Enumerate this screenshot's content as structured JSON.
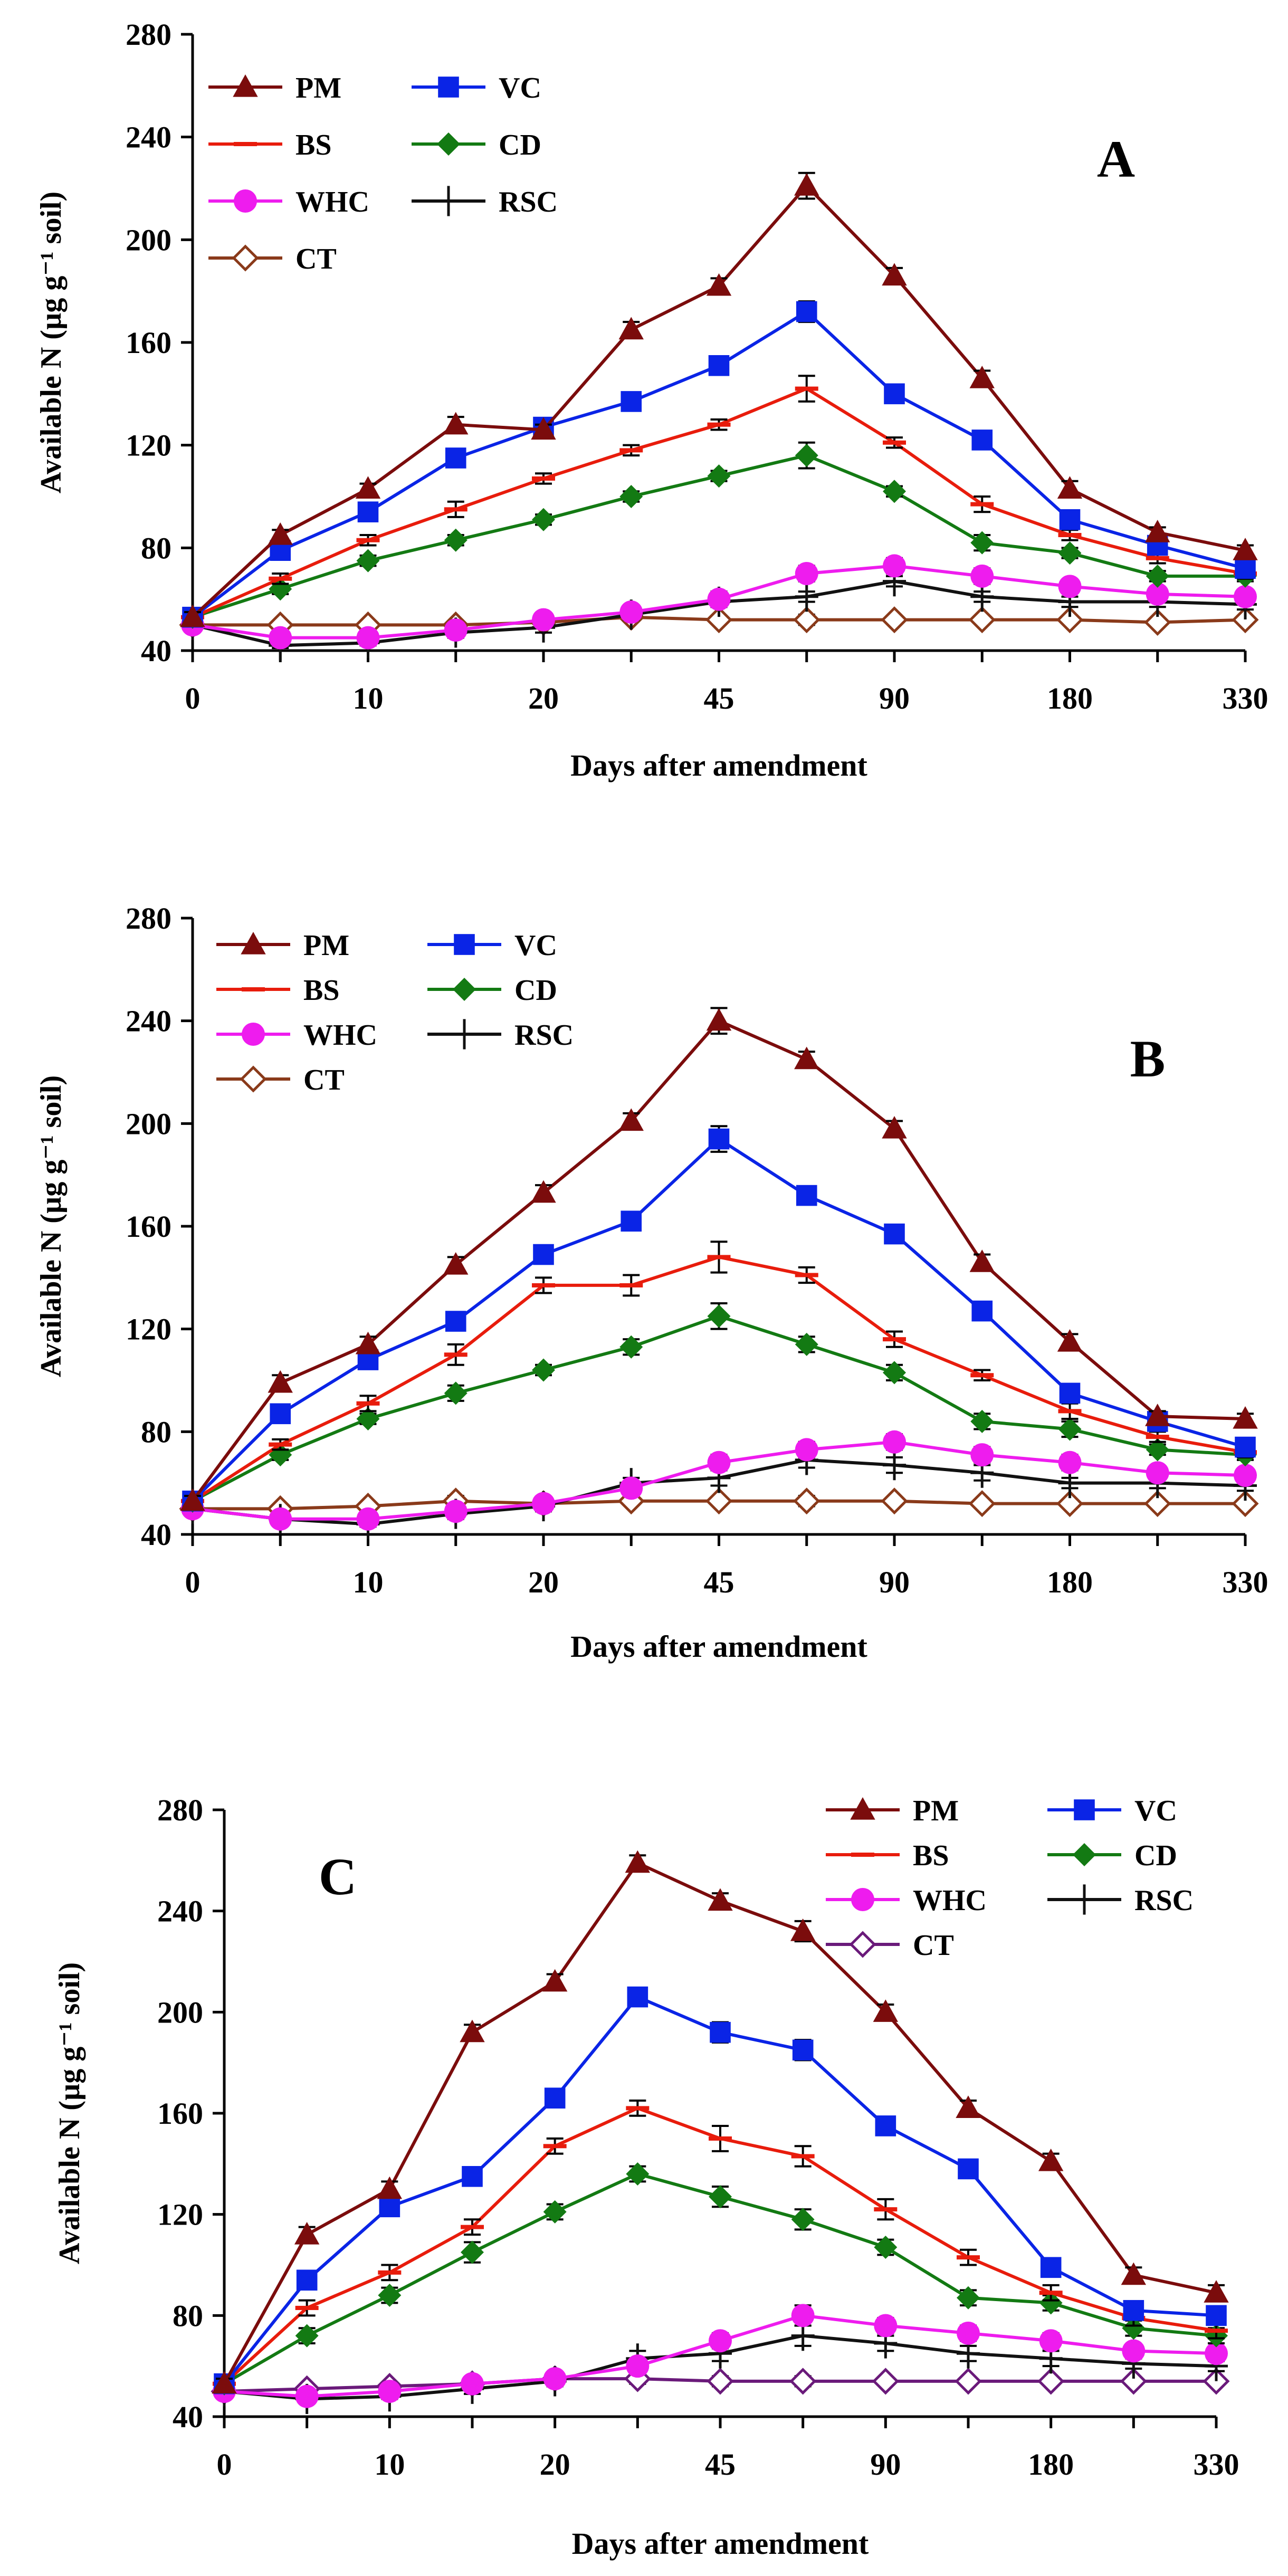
{
  "colors": {
    "PM": "#7b0c0c",
    "VC": "#0a24e6",
    "BS": "#e81c0c",
    "CD": "#137a13",
    "WHC": "#ee1cee",
    "RSC": "#111111",
    "CT_A": "#8a3a1a",
    "CT_C": "#6a1a7a"
  },
  "chart_data": [
    {
      "type": "line",
      "panel_label": "A",
      "title": "",
      "xlabel": "Days after amendment",
      "ylabel": "Available N (µg g⁻¹ soil)",
      "categories": [
        "0",
        "",
        "10",
        "",
        "20",
        "",
        "45",
        "",
        "90",
        "",
        "180",
        "",
        "330"
      ],
      "ylim": [
        40,
        280
      ],
      "yticks": [
        40,
        80,
        120,
        160,
        200,
        240,
        280
      ],
      "legend_placement": "top-left",
      "series": [
        {
          "name": "PM",
          "marker": "triangle",
          "values": [
            53,
            85,
            103,
            128,
            126,
            165,
            182,
            221,
            186,
            146,
            103,
            86,
            79
          ],
          "errors": [
            2,
            2,
            2,
            3,
            2,
            3,
            3,
            5,
            3,
            3,
            3,
            2,
            2
          ]
        },
        {
          "name": "VC",
          "marker": "square",
          "values": [
            53,
            79,
            94,
            115,
            127,
            137,
            151,
            172,
            140,
            122,
            91,
            81,
            72
          ],
          "errors": [
            2,
            2,
            3,
            3,
            3,
            2,
            3,
            4,
            3,
            3,
            3,
            2,
            2
          ]
        },
        {
          "name": "BS",
          "marker": "dash",
          "values": [
            53,
            68,
            83,
            95,
            107,
            118,
            128,
            142,
            121,
            97,
            85,
            76,
            70
          ],
          "errors": [
            2,
            2,
            2,
            3,
            2,
            2,
            2,
            5,
            2,
            3,
            2,
            2,
            2
          ]
        },
        {
          "name": "CD",
          "marker": "diamond",
          "values": [
            53,
            64,
            75,
            83,
            91,
            100,
            108,
            116,
            102,
            82,
            78,
            69,
            69
          ],
          "errors": [
            2,
            2,
            2,
            2,
            2,
            2,
            2,
            5,
            2,
            3,
            2,
            2,
            2
          ]
        },
        {
          "name": "WHC",
          "marker": "circle",
          "values": [
            50,
            45,
            45,
            48,
            52,
            55,
            60,
            70,
            73,
            69,
            65,
            62,
            61
          ],
          "errors": [
            1,
            1,
            1,
            2,
            2,
            2,
            3,
            3,
            3,
            3,
            2,
            2,
            2
          ]
        },
        {
          "name": "RSC",
          "marker": "plus",
          "values": [
            50,
            42,
            43,
            47,
            49,
            54,
            59,
            61,
            67,
            61,
            59,
            59,
            58
          ],
          "errors": [
            1,
            1,
            1,
            2,
            2,
            2,
            2,
            2,
            2,
            2,
            2,
            2,
            2
          ]
        },
        {
          "name": "CT",
          "marker": "open-diamond",
          "values": [
            50,
            50,
            50,
            50,
            51,
            53,
            52,
            52,
            52,
            52,
            52,
            51,
            52
          ],
          "errors": [
            1,
            1,
            1,
            1,
            1,
            1,
            1,
            2,
            1,
            1,
            1,
            1,
            1
          ]
        }
      ]
    },
    {
      "type": "line",
      "panel_label": "B",
      "title": "",
      "xlabel": "Days after amendment",
      "ylabel": "Available N (µg g⁻¹ soil)",
      "categories": [
        "0",
        "",
        "10",
        "",
        "20",
        "",
        "45",
        "",
        "90",
        "",
        "180",
        "",
        "330"
      ],
      "ylim": [
        40,
        280
      ],
      "yticks": [
        40,
        80,
        120,
        160,
        200,
        240,
        280
      ],
      "legend_placement": "top-left",
      "series": [
        {
          "name": "PM",
          "marker": "triangle",
          "values": [
            53,
            99,
            114,
            145,
            173,
            201,
            240,
            225,
            198,
            146,
            115,
            86,
            85
          ],
          "errors": [
            2,
            3,
            3,
            3,
            3,
            3,
            5,
            3,
            3,
            3,
            3,
            2,
            2
          ]
        },
        {
          "name": "VC",
          "marker": "square",
          "values": [
            53,
            87,
            108,
            123,
            149,
            162,
            194,
            172,
            157,
            127,
            95,
            84,
            74
          ],
          "errors": [
            2,
            3,
            3,
            3,
            3,
            3,
            5,
            3,
            3,
            3,
            3,
            2,
            2
          ]
        },
        {
          "name": "BS",
          "marker": "dash",
          "values": [
            53,
            75,
            91,
            110,
            137,
            137,
            148,
            141,
            116,
            102,
            88,
            78,
            72
          ],
          "errors": [
            2,
            2,
            3,
            4,
            3,
            4,
            6,
            3,
            3,
            2,
            3,
            2,
            2
          ]
        },
        {
          "name": "CD",
          "marker": "diamond",
          "values": [
            53,
            71,
            85,
            95,
            104,
            113,
            125,
            114,
            103,
            84,
            81,
            73,
            71
          ],
          "errors": [
            2,
            2,
            2,
            3,
            2,
            3,
            5,
            3,
            3,
            3,
            3,
            2,
            2
          ]
        },
        {
          "name": "WHC",
          "marker": "circle",
          "values": [
            50,
            46,
            46,
            49,
            52,
            58,
            68,
            73,
            76,
            71,
            68,
            64,
            63
          ],
          "errors": [
            1,
            1,
            1,
            2,
            2,
            2,
            3,
            3,
            3,
            3,
            3,
            2,
            2
          ]
        },
        {
          "name": "RSC",
          "marker": "plus",
          "values": [
            50,
            46,
            44,
            48,
            51,
            60,
            62,
            69,
            67,
            64,
            60,
            60,
            59
          ],
          "errors": [
            1,
            1,
            1,
            2,
            2,
            2,
            3,
            3,
            3,
            3,
            2,
            2,
            2
          ]
        },
        {
          "name": "CT",
          "marker": "open-diamond",
          "values": [
            50,
            50,
            51,
            53,
            52,
            53,
            53,
            53,
            53,
            52,
            52,
            52,
            52
          ],
          "errors": [
            1,
            1,
            1,
            2,
            1,
            1,
            1,
            2,
            1,
            1,
            1,
            1,
            1
          ]
        }
      ]
    },
    {
      "type": "line",
      "panel_label": "C",
      "title": "",
      "xlabel": "Days after amendment",
      "ylabel": "Available N (µg g⁻¹ soil)",
      "categories": [
        "0",
        "",
        "10",
        "",
        "20",
        "",
        "45",
        "",
        "90",
        "",
        "180",
        "",
        "330"
      ],
      "ylim": [
        40,
        280
      ],
      "yticks": [
        40,
        80,
        120,
        160,
        200,
        240,
        280
      ],
      "legend_placement": "top-right",
      "series": [
        {
          "name": "PM",
          "marker": "triangle",
          "values": [
            53,
            112,
            130,
            192,
            212,
            259,
            244,
            232,
            200,
            162,
            141,
            96,
            89
          ],
          "errors": [
            2,
            3,
            3,
            3,
            3,
            3,
            3,
            4,
            3,
            3,
            3,
            3,
            3
          ]
        },
        {
          "name": "VC",
          "marker": "square",
          "values": [
            53,
            94,
            123,
            135,
            166,
            206,
            192,
            185,
            155,
            138,
            99,
            82,
            80
          ],
          "errors": [
            2,
            3,
            3,
            3,
            3,
            3,
            4,
            4,
            3,
            3,
            3,
            3,
            3
          ]
        },
        {
          "name": "BS",
          "marker": "dash",
          "values": [
            53,
            83,
            97,
            115,
            147,
            162,
            150,
            143,
            122,
            103,
            89,
            79,
            74
          ],
          "errors": [
            2,
            3,
            3,
            3,
            3,
            3,
            5,
            4,
            4,
            3,
            3,
            3,
            3
          ]
        },
        {
          "name": "CD",
          "marker": "diamond",
          "values": [
            53,
            72,
            88,
            105,
            121,
            136,
            127,
            118,
            107,
            87,
            85,
            75,
            72
          ],
          "errors": [
            2,
            3,
            3,
            4,
            3,
            3,
            4,
            4,
            3,
            3,
            3,
            3,
            3
          ]
        },
        {
          "name": "WHC",
          "marker": "circle",
          "values": [
            50,
            48,
            50,
            53,
            55,
            60,
            70,
            80,
            76,
            73,
            70,
            66,
            65
          ],
          "errors": [
            1,
            1,
            1,
            2,
            2,
            2,
            3,
            4,
            3,
            3,
            3,
            2,
            2
          ]
        },
        {
          "name": "RSC",
          "marker": "plus",
          "values": [
            50,
            47,
            48,
            51,
            54,
            63,
            65,
            72,
            69,
            65,
            63,
            61,
            60
          ],
          "errors": [
            1,
            1,
            1,
            2,
            2,
            3,
            3,
            4,
            3,
            3,
            3,
            2,
            2
          ]
        },
        {
          "name": "CT",
          "marker": "open-diamond",
          "values": [
            50,
            51,
            52,
            53,
            55,
            55,
            54,
            54,
            54,
            54,
            54,
            54,
            54
          ],
          "errors": [
            1,
            1,
            1,
            2,
            1,
            2,
            2,
            2,
            1,
            1,
            1,
            1,
            1
          ]
        }
      ]
    }
  ]
}
